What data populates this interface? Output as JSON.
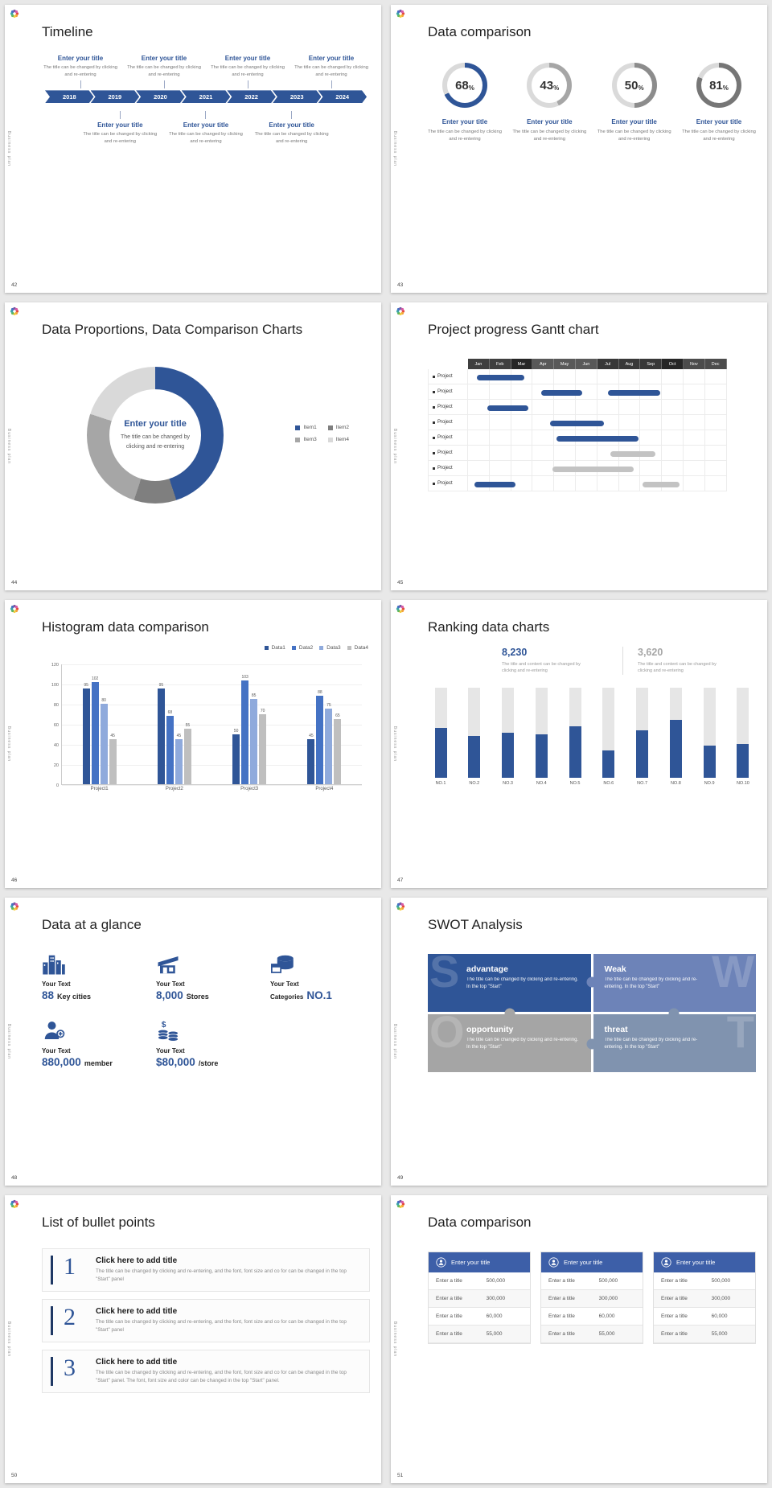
{
  "app": {
    "sidebar_label": "Business plan"
  },
  "colors": {
    "primary": "#2F5597",
    "primary_mid": "#4472C4",
    "primary_light": "#8FAADC",
    "gray": "#A6A6A6",
    "gray_light": "#D9D9D9",
    "bar_gray": "#BFBFBF",
    "table_header": "#3D5FA8"
  },
  "slides": {
    "timeline": {
      "page": "42",
      "title": "Timeline",
      "years": [
        "2018",
        "2019",
        "2020",
        "2021",
        "2022",
        "2023",
        "2024"
      ],
      "top_entries": [
        {
          "title": "Enter your title",
          "desc": "The title can be changed by clicking and re-entering"
        },
        {
          "title": "Enter your title",
          "desc": "The title can be changed by clicking and re-entering"
        },
        {
          "title": "Enter your title",
          "desc": "The title can be changed by clicking and re-entering"
        },
        {
          "title": "Enter your title",
          "desc": "The title can be changed by clicking and re-entering"
        }
      ],
      "bottom_entries": [
        {
          "title": "Enter your title",
          "desc": "The title can be changed by clicking and re-entering"
        },
        {
          "title": "Enter your title",
          "desc": "The title can be changed by clicking and re-entering"
        },
        {
          "title": "Enter your title",
          "desc": "The title can be changed by clicking and re-entering"
        }
      ]
    },
    "donuts": {
      "page": "43",
      "title": "Data comparison",
      "items": [
        {
          "pct": 68,
          "color": "#2F5597",
          "title": "Enter your title",
          "desc": "The title can be changed by clicking and re-entering"
        },
        {
          "pct": 43,
          "color": "#A6A6A6",
          "title": "Enter your title",
          "desc": "The title can be changed by clicking and re-entering"
        },
        {
          "pct": 50,
          "color": "#8C8C8C",
          "title": "Enter your title",
          "desc": "The title can be changed by clicking and re-entering"
        },
        {
          "pct": 81,
          "color": "#767676",
          "title": "Enter your title",
          "desc": "The title can be changed by clicking and re-entering"
        }
      ]
    },
    "proportion": {
      "page": "44",
      "title": "Data Proportions, Data Comparison Charts",
      "center_title": "Enter your title",
      "center_desc": "The title can be changed by clicking and re-entering",
      "chart_data": {
        "type": "pie",
        "segments": [
          {
            "label": "Item1",
            "value": 45,
            "color": "#2F5597"
          },
          {
            "label": "Item2",
            "value": 10,
            "color": "#7F7F7F"
          },
          {
            "label": "Item3",
            "value": 25,
            "color": "#A6A6A6"
          },
          {
            "label": "Item4",
            "value": 20,
            "color": "#D9D9D9"
          }
        ]
      }
    },
    "gantt": {
      "page": "45",
      "title": "Project progress Gantt chart",
      "months": [
        "Jan",
        "Feb",
        "Mar",
        "Apr",
        "May",
        "Jun",
        "Jul",
        "Aug",
        "Sep",
        "Oct",
        "Nov",
        "Dec"
      ],
      "row_label": "Project",
      "row_count": 8,
      "chart_data": {
        "type": "gantt",
        "bars": [
          {
            "row": 0,
            "start": 0.4,
            "end": 2.6,
            "color": "blue"
          },
          {
            "row": 1,
            "start": 3.4,
            "end": 5.3,
            "color": "blue"
          },
          {
            "row": 1,
            "start": 6.5,
            "end": 8.9,
            "color": "blue"
          },
          {
            "row": 2,
            "start": 0.9,
            "end": 2.8,
            "color": "blue"
          },
          {
            "row": 3,
            "start": 3.8,
            "end": 6.3,
            "color": "blue"
          },
          {
            "row": 4,
            "start": 4.1,
            "end": 7.9,
            "color": "blue"
          },
          {
            "row": 5,
            "start": 6.6,
            "end": 8.7,
            "color": "gray"
          },
          {
            "row": 6,
            "start": 3.9,
            "end": 7.7,
            "color": "gray"
          },
          {
            "row": 7,
            "start": 0.3,
            "end": 2.2,
            "color": "blue"
          },
          {
            "row": 7,
            "start": 8.1,
            "end": 9.8,
            "color": "gray"
          }
        ]
      }
    },
    "histogram": {
      "page": "46",
      "title": "Histogram data comparison",
      "chart_data": {
        "type": "bar",
        "categories": [
          "Project1",
          "Project2",
          "Project3",
          "Project4"
        ],
        "series": [
          {
            "name": "Data1",
            "color": "#2F5597",
            "values": [
              95,
              95,
              50,
              45
            ]
          },
          {
            "name": "Data2",
            "color": "#4472C4",
            "values": [
              102,
              68,
              103,
              88
            ]
          },
          {
            "name": "Data3",
            "color": "#8FAADC",
            "values": [
              80,
              45,
              85,
              75
            ]
          },
          {
            "name": "Data4",
            "color": "#BFBFBF",
            "values": [
              45,
              55,
              70,
              65
            ]
          }
        ],
        "ylim": [
          0,
          120
        ],
        "yticks": [
          0,
          20,
          40,
          60,
          80,
          100,
          120
        ]
      }
    },
    "ranking": {
      "page": "47",
      "title": "Ranking data charts",
      "stats": [
        {
          "value": "8,230",
          "color": "#2F5597",
          "desc": "The title and content can be changed by clicking and re-entering"
        },
        {
          "value": "3,620",
          "color": "#A6A6A6",
          "desc": "The title and content can be changed by clicking and re-entering"
        }
      ],
      "chart_data": {
        "type": "bar",
        "categories": [
          "NO.1",
          "NO.2",
          "NO.3",
          "NO.4",
          "NO.5",
          "NO.6",
          "NO.7",
          "NO.8",
          "NO.9",
          "NO.10"
        ],
        "values": [
          55,
          46,
          50,
          48,
          57,
          30,
          52,
          64,
          35,
          37
        ],
        "ymax": 100
      }
    },
    "glance": {
      "page": "48",
      "title": "Data at a glance",
      "rows": [
        [
          {
            "icon": "city-buildings-icon",
            "label": "Your Text",
            "prefix": "",
            "value": "88",
            "suffix": "Key cities"
          },
          {
            "icon": "store-icon",
            "label": "Your Text",
            "prefix": "",
            "value": "8,000",
            "suffix": "Stores"
          },
          {
            "icon": "package-icon",
            "label": "Your Text",
            "prefix": "Categories",
            "value": "NO.1",
            "suffix": ""
          }
        ],
        [
          {
            "icon": "member-icon",
            "label": "Your Text",
            "prefix": "",
            "value": "880,000",
            "suffix": "member"
          },
          {
            "icon": "coins-icon",
            "label": "Your Text",
            "prefix": "",
            "value": "$80,000",
            "suffix": "/store"
          }
        ]
      ]
    },
    "swot": {
      "page": "49",
      "title": "SWOT Analysis",
      "quadrants": [
        {
          "letter": "S",
          "side": "left",
          "title": "advantage",
          "desc": "The title can be changed by clicking and re-entering. In the top \"Start\"",
          "color": "#2F5597"
        },
        {
          "letter": "W",
          "side": "right",
          "title": "Weak",
          "desc": "The title can be changed by clicking and re-entering. In the top \"Start\"",
          "color": "#6D83B8"
        },
        {
          "letter": "O",
          "side": "left",
          "title": "opportunity",
          "desc": "The title can be changed by clicking and re-entering. In the top \"Start\"",
          "color": "#A5A5A5"
        },
        {
          "letter": "T",
          "side": "right",
          "title": "threat",
          "desc": "The title can be changed by clicking and re-entering. In the top \"Start\"",
          "color": "#8093AF"
        }
      ]
    },
    "bullets": {
      "page": "50",
      "title": "List of bullet points",
      "items": [
        {
          "num": "1",
          "title": "Click here to add title",
          "desc": "The title can be changed by clicking and re-entering, and the font, font size and co for can be changed in the top \"Start\" panel"
        },
        {
          "num": "2",
          "title": "Click here to add title",
          "desc": "The title can be changed by clicking and re-entering, and the font, font size and co for can be changed in the top \"Start\" panel"
        },
        {
          "num": "3",
          "title": "Click here to add title",
          "desc": "The title can be changed by clicking and re-entering, and the font, font size and co for can be changed in the top \"Start\" panel. The font, font size and color can be changed in the top \"Start\" panel."
        }
      ]
    },
    "tables": {
      "page": "51",
      "title": "Data comparison",
      "tables": [
        {
          "header": "Enter your title",
          "icon": "person-badge-icon",
          "rows": [
            [
              "Enter a title",
              "500,000"
            ],
            [
              "Enter a title",
              "300,000"
            ],
            [
              "Enter a title",
              "60,000"
            ],
            [
              "Enter a title",
              "55,000"
            ]
          ]
        },
        {
          "header": "Enter your title",
          "icon": "person-badge-icon",
          "rows": [
            [
              "Enter a title",
              "500,000"
            ],
            [
              "Enter a title",
              "300,000"
            ],
            [
              "Enter a title",
              "60,000"
            ],
            [
              "Enter a title",
              "55,000"
            ]
          ]
        },
        {
          "header": "Enter your title",
          "icon": "person-badge-icon",
          "rows": [
            [
              "Enter a title",
              "500,000"
            ],
            [
              "Enter a title",
              "300,000"
            ],
            [
              "Enter a title",
              "60,000"
            ],
            [
              "Enter a title",
              "55,000"
            ]
          ]
        }
      ]
    }
  }
}
